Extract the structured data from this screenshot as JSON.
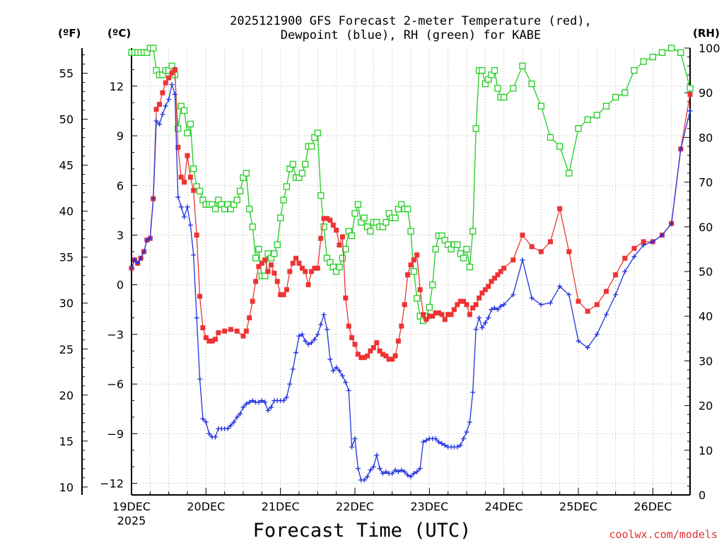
{
  "chart_data": {
    "type": "line",
    "title_line1": "2025121900 GFS Forecast 2-meter Temperature (red),",
    "title_line2": "Dewpoint (blue), RH (green) for KABE",
    "xlabel": "Forecast Time (UTC)",
    "unit_f": "(ºF)",
    "unit_c": "(ºC)",
    "unit_rh": "(RH)",
    "credit": "coolwx.com/models",
    "x_range_days": [
      19,
      26.5
    ],
    "ylim_c": [
      -12.7,
      14.3
    ],
    "ylim_rh": [
      0,
      100
    ],
    "x_ticks": [
      {
        "day": 19,
        "label": "19DEC",
        "sub": "2025"
      },
      {
        "day": 20,
        "label": "20DEC",
        "sub": ""
      },
      {
        "day": 21,
        "label": "21DEC",
        "sub": ""
      },
      {
        "day": 22,
        "label": "22DEC",
        "sub": ""
      },
      {
        "day": 23,
        "label": "23DEC",
        "sub": ""
      },
      {
        "day": 24,
        "label": "24DEC",
        "sub": ""
      },
      {
        "day": 25,
        "label": "25DEC",
        "sub": ""
      },
      {
        "day": 26,
        "label": "26DEC",
        "sub": ""
      }
    ],
    "c_ticks": [
      12,
      9,
      6,
      3,
      0,
      -3,
      -6,
      -9,
      -12
    ],
    "f_ticks": [
      55,
      50,
      45,
      40,
      35,
      30,
      25,
      20,
      15,
      10
    ],
    "rh_ticks": [
      100,
      90,
      80,
      70,
      60,
      50,
      40,
      30,
      20,
      10,
      0
    ],
    "grid": true,
    "series": [
      {
        "name": "Temperature",
        "color": "#ee3333",
        "marker": "square-filled",
        "x": [
          19.0,
          19.042,
          19.083,
          19.125,
          19.167,
          19.208,
          19.25,
          19.292,
          19.333,
          19.375,
          19.417,
          19.458,
          19.5,
          19.542,
          19.583,
          19.625,
          19.667,
          19.708,
          19.75,
          19.792,
          19.833,
          19.875,
          19.917,
          19.958,
          20.0,
          20.042,
          20.083,
          20.125,
          20.167,
          20.25,
          20.333,
          20.417,
          20.5,
          20.542,
          20.583,
          20.625,
          20.667,
          20.708,
          20.75,
          20.792,
          20.833,
          20.875,
          20.917,
          20.958,
          21.0,
          21.042,
          21.083,
          21.125,
          21.167,
          21.208,
          21.25,
          21.292,
          21.333,
          21.375,
          21.417,
          21.458,
          21.5,
          21.542,
          21.583,
          21.625,
          21.667,
          21.708,
          21.75,
          21.792,
          21.833,
          21.875,
          21.917,
          21.958,
          22.0,
          22.042,
          22.083,
          22.125,
          22.167,
          22.208,
          22.25,
          22.292,
          22.333,
          22.375,
          22.417,
          22.458,
          22.5,
          22.542,
          22.583,
          22.625,
          22.667,
          22.708,
          22.75,
          22.792,
          22.833,
          22.875,
          22.917,
          22.958,
          23.0,
          23.042,
          23.083,
          23.125,
          23.167,
          23.208,
          23.25,
          23.292,
          23.333,
          23.375,
          23.417,
          23.458,
          23.5,
          23.542,
          23.583,
          23.625,
          23.667,
          23.708,
          23.75,
          23.792,
          23.833,
          23.875,
          23.917,
          23.958,
          24.0,
          24.125,
          24.25,
          24.375,
          24.5,
          24.625,
          24.75,
          24.875,
          25.0,
          25.125,
          25.25,
          25.375,
          25.5,
          25.625,
          25.75,
          25.875,
          26.0,
          26.125,
          26.25,
          26.375,
          26.5
        ],
        "values": [
          1.0,
          1.5,
          1.3,
          1.6,
          2.0,
          2.7,
          2.8,
          5.2,
          10.6,
          10.9,
          11.6,
          12.2,
          12.5,
          12.8,
          13.0,
          8.3,
          6.5,
          6.2,
          7.8,
          6.5,
          5.7,
          3.0,
          -0.7,
          -2.6,
          -3.2,
          -3.4,
          -3.4,
          -3.3,
          -2.9,
          -2.8,
          -2.7,
          -2.8,
          -3.1,
          -2.8,
          -2.0,
          -1.0,
          0.2,
          1.1,
          1.3,
          1.5,
          0.8,
          1.2,
          0.7,
          0.2,
          -0.6,
          -0.6,
          -0.3,
          0.8,
          1.3,
          1.6,
          1.3,
          1.0,
          0.8,
          0.0,
          0.8,
          1.0,
          1.0,
          2.8,
          4.0,
          4.0,
          3.9,
          3.6,
          3.3,
          2.4,
          2.9,
          -0.8,
          -2.5,
          -3.2,
          -3.6,
          -4.2,
          -4.4,
          -4.4,
          -4.3,
          -4.0,
          -3.8,
          -3.5,
          -4.0,
          -4.2,
          -4.3,
          -4.5,
          -4.5,
          -4.3,
          -3.4,
          -2.5,
          -1.2,
          0.6,
          1.2,
          1.5,
          1.8,
          -0.3,
          -1.8,
          -2.1,
          -1.9,
          -1.9,
          -1.7,
          -1.7,
          -1.8,
          -2.1,
          -1.8,
          -1.8,
          -1.5,
          -1.2,
          -1.0,
          -1.0,
          -1.2,
          -1.8,
          -1.4,
          -1.2,
          -0.8,
          -0.5,
          -0.3,
          -0.1,
          0.2,
          0.4,
          0.6,
          0.8,
          1.0,
          1.5,
          3.0,
          2.3,
          2.0,
          2.6,
          4.6,
          2.0,
          -1.0,
          -1.6,
          -1.2,
          -0.4,
          0.6,
          1.6,
          2.2,
          2.6,
          2.6,
          3.0,
          3.7,
          8.2,
          11.5
        ]
      },
      {
        "name": "Dewpoint",
        "color": "#2233dd",
        "marker": "plus",
        "x": [
          19.0,
          19.042,
          19.083,
          19.125,
          19.167,
          19.208,
          19.25,
          19.292,
          19.333,
          19.375,
          19.417,
          19.458,
          19.5,
          19.542,
          19.583,
          19.625,
          19.667,
          19.708,
          19.75,
          19.792,
          19.833,
          19.875,
          19.917,
          19.958,
          20.0,
          20.042,
          20.083,
          20.125,
          20.167,
          20.208,
          20.25,
          20.292,
          20.333,
          20.375,
          20.417,
          20.458,
          20.5,
          20.542,
          20.583,
          20.625,
          20.667,
          20.708,
          20.75,
          20.792,
          20.833,
          20.875,
          20.917,
          20.958,
          21.0,
          21.042,
          21.083,
          21.125,
          21.167,
          21.208,
          21.25,
          21.292,
          21.333,
          21.375,
          21.417,
          21.458,
          21.5,
          21.542,
          21.583,
          21.625,
          21.667,
          21.708,
          21.75,
          21.792,
          21.833,
          21.875,
          21.917,
          21.958,
          22.0,
          22.042,
          22.083,
          22.125,
          22.167,
          22.208,
          22.25,
          22.292,
          22.333,
          22.375,
          22.417,
          22.458,
          22.5,
          22.542,
          22.583,
          22.625,
          22.667,
          22.708,
          22.75,
          22.792,
          22.833,
          22.875,
          22.917,
          22.958,
          23.0,
          23.042,
          23.083,
          23.125,
          23.167,
          23.208,
          23.25,
          23.292,
          23.333,
          23.375,
          23.417,
          23.458,
          23.5,
          23.542,
          23.583,
          23.625,
          23.667,
          23.708,
          23.75,
          23.792,
          23.833,
          23.875,
          23.917,
          23.958,
          24.0,
          24.125,
          24.25,
          24.375,
          24.5,
          24.625,
          24.75,
          24.875,
          25.0,
          25.125,
          25.25,
          25.375,
          25.5,
          25.625,
          25.75,
          25.875,
          26.0,
          26.125,
          26.25,
          26.375,
          26.5
        ],
        "values": [
          1.0,
          1.5,
          1.3,
          1.6,
          2.0,
          2.7,
          2.8,
          5.2,
          9.9,
          9.7,
          10.3,
          10.8,
          11.2,
          12.1,
          11.5,
          5.3,
          4.7,
          4.1,
          4.7,
          3.6,
          1.8,
          -2.0,
          -5.7,
          -8.1,
          -8.3,
          -9.0,
          -9.2,
          -9.2,
          -8.7,
          -8.7,
          -8.7,
          -8.7,
          -8.5,
          -8.3,
          -8.0,
          -7.8,
          -7.4,
          -7.2,
          -7.1,
          -7.0,
          -7.1,
          -7.1,
          -7.0,
          -7.1,
          -7.6,
          -7.4,
          -7.0,
          -7.0,
          -7.0,
          -7.0,
          -6.8,
          -6.0,
          -5.1,
          -4.1,
          -3.1,
          -3.0,
          -3.4,
          -3.6,
          -3.5,
          -3.3,
          -3.0,
          -2.4,
          -1.8,
          -2.7,
          -4.5,
          -5.2,
          -5.0,
          -5.2,
          -5.5,
          -5.9,
          -6.4,
          -9.8,
          -9.3,
          -11.1,
          -11.8,
          -11.8,
          -11.6,
          -11.2,
          -11.0,
          -10.3,
          -11.1,
          -11.4,
          -11.3,
          -11.4,
          -11.4,
          -11.2,
          -11.3,
          -11.2,
          -11.3,
          -11.5,
          -11.6,
          -11.4,
          -11.3,
          -11.1,
          -9.5,
          -9.4,
          -9.3,
          -9.3,
          -9.3,
          -9.5,
          -9.6,
          -9.7,
          -9.8,
          -9.8,
          -9.8,
          -9.8,
          -9.7,
          -9.3,
          -8.9,
          -8.3,
          -6.5,
          -2.7,
          -2.0,
          -2.6,
          -2.3,
          -2.0,
          -1.5,
          -1.4,
          -1.5,
          -1.3,
          -1.2,
          -0.6,
          1.5,
          -0.8,
          -1.2,
          -1.1,
          -0.1,
          -0.6,
          -3.4,
          -3.8,
          -3.0,
          -1.8,
          -0.6,
          0.8,
          1.7,
          2.4,
          2.6,
          3.0,
          3.7,
          8.2,
          10.5
        ]
      },
      {
        "name": "RH",
        "color": "#22cc22",
        "marker": "square-open",
        "axis": "rh",
        "x": [
          19.0,
          19.042,
          19.083,
          19.125,
          19.167,
          19.208,
          19.25,
          19.292,
          19.333,
          19.375,
          19.417,
          19.458,
          19.5,
          19.542,
          19.583,
          19.625,
          19.667,
          19.708,
          19.75,
          19.792,
          19.833,
          19.875,
          19.917,
          19.958,
          20.0,
          20.042,
          20.083,
          20.125,
          20.167,
          20.208,
          20.25,
          20.292,
          20.333,
          20.375,
          20.417,
          20.458,
          20.5,
          20.542,
          20.583,
          20.625,
          20.667,
          20.708,
          20.75,
          20.792,
          20.833,
          20.875,
          20.917,
          20.958,
          21.0,
          21.042,
          21.083,
          21.125,
          21.167,
          21.208,
          21.25,
          21.292,
          21.333,
          21.375,
          21.417,
          21.458,
          21.5,
          21.542,
          21.583,
          21.625,
          21.667,
          21.708,
          21.75,
          21.792,
          21.833,
          21.875,
          21.917,
          21.958,
          22.0,
          22.042,
          22.083,
          22.125,
          22.167,
          22.208,
          22.25,
          22.292,
          22.333,
          22.375,
          22.417,
          22.458,
          22.5,
          22.542,
          22.583,
          22.625,
          22.667,
          22.708,
          22.75,
          22.792,
          22.833,
          22.875,
          22.917,
          22.958,
          23.0,
          23.042,
          23.083,
          23.125,
          23.167,
          23.208,
          23.25,
          23.292,
          23.333,
          23.375,
          23.417,
          23.458,
          23.5,
          23.542,
          23.583,
          23.625,
          23.667,
          23.708,
          23.75,
          23.792,
          23.833,
          23.875,
          23.917,
          23.958,
          24.0,
          24.125,
          24.25,
          24.375,
          24.5,
          24.625,
          24.75,
          24.875,
          25.0,
          25.125,
          25.25,
          25.375,
          25.5,
          25.625,
          25.75,
          25.875,
          26.0,
          26.125,
          26.25,
          26.375,
          26.5
        ],
        "values": [
          99,
          99,
          99,
          99,
          99,
          99,
          100,
          100,
          95,
          94,
          94,
          95,
          95,
          96,
          94,
          82,
          87,
          86,
          81,
          83,
          73,
          69,
          68,
          66,
          65,
          65,
          65,
          64,
          66,
          65,
          64,
          65,
          64,
          65,
          66,
          68,
          71,
          72,
          64,
          60,
          53,
          55,
          49,
          49,
          54,
          53,
          54,
          56,
          62,
          66,
          69,
          73,
          74,
          71,
          71,
          72,
          74,
          78,
          78,
          80,
          81,
          67,
          60,
          53,
          52,
          51,
          50,
          51,
          53,
          55,
          59,
          58,
          63,
          65,
          61,
          62,
          60,
          59,
          61,
          61,
          60,
          60,
          61,
          63,
          62,
          62,
          64,
          65,
          64,
          64,
          59,
          50,
          44,
          40,
          39,
          40,
          42,
          47,
          55,
          58,
          58,
          57,
          56,
          55,
          56,
          56,
          54,
          53,
          55,
          51,
          59,
          82,
          95,
          95,
          92,
          93,
          94,
          95,
          91,
          89,
          89,
          91,
          96,
          92,
          87,
          80,
          78,
          72,
          82,
          84,
          85,
          87,
          89,
          90,
          95,
          97,
          98,
          99,
          100,
          99,
          91
        ]
      }
    ]
  }
}
